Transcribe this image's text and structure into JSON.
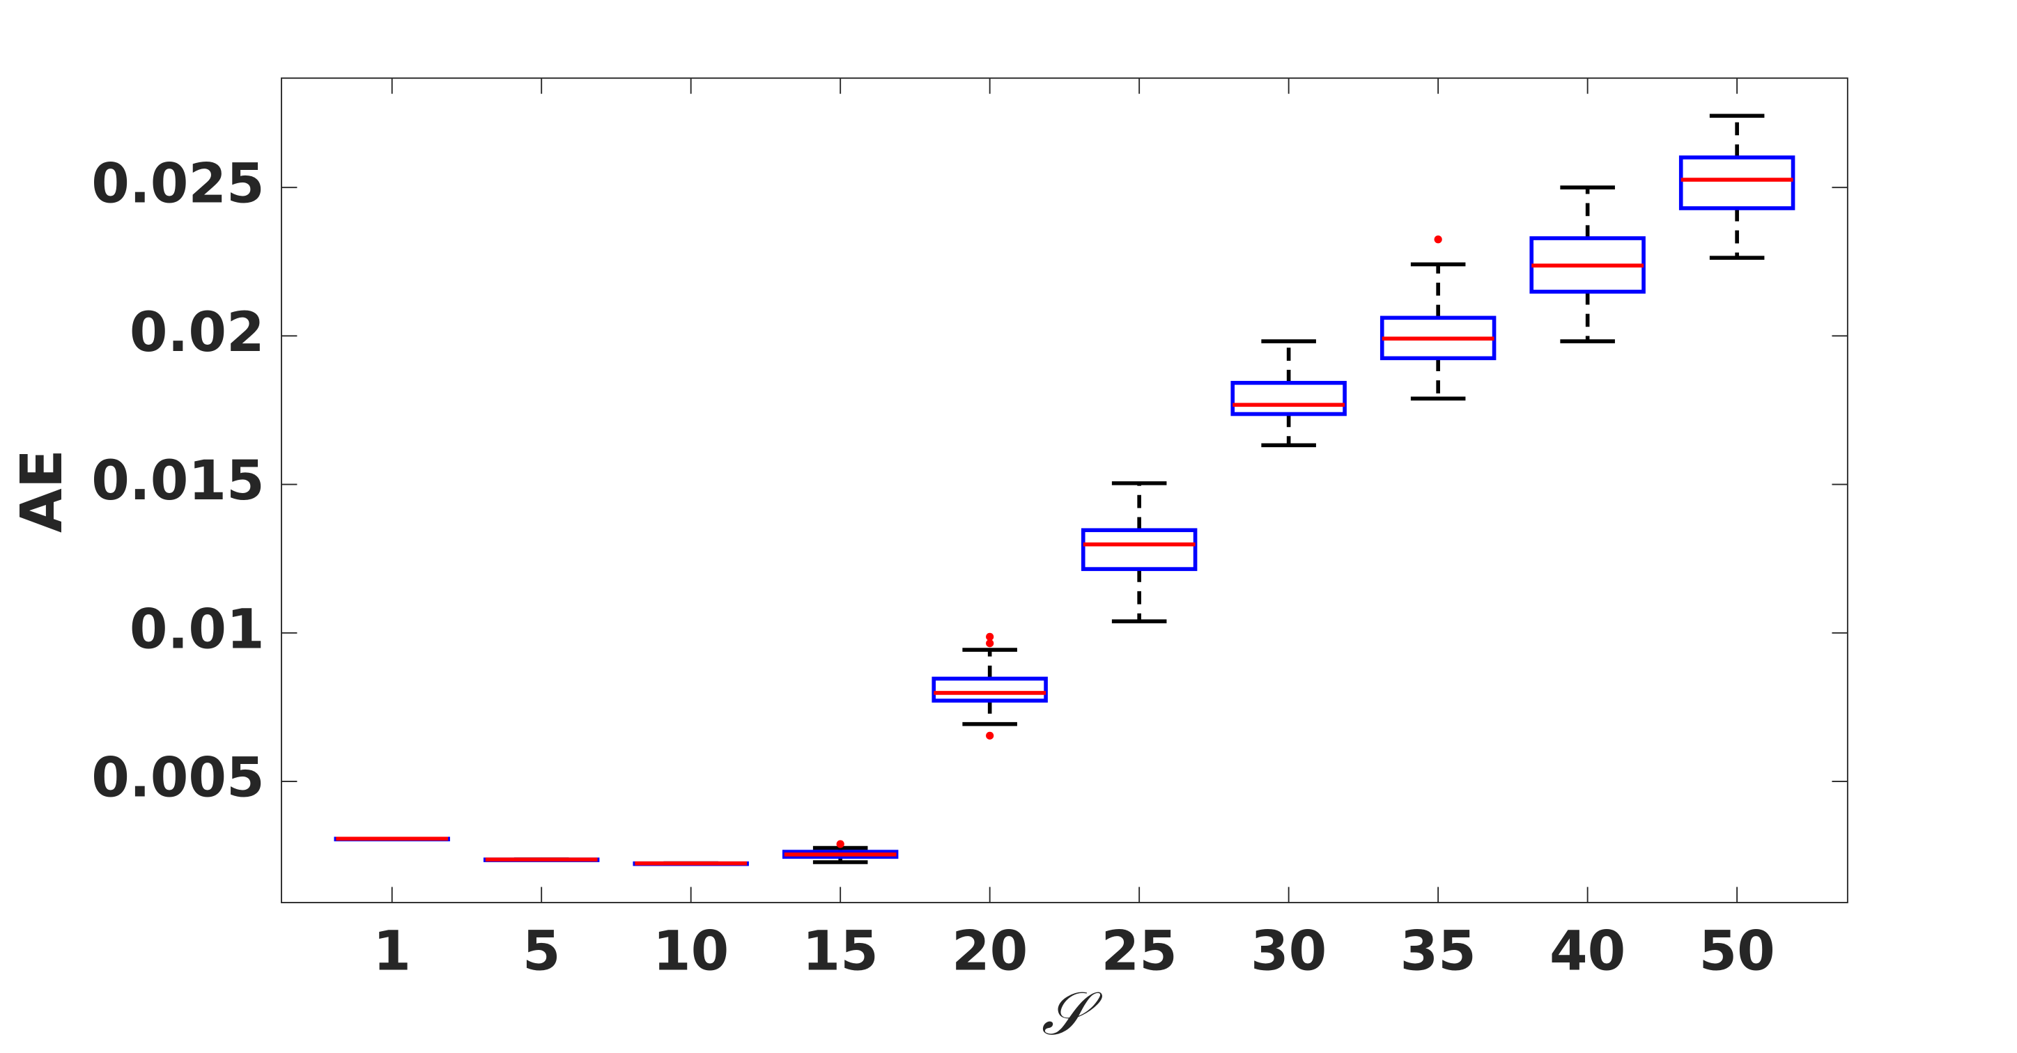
{
  "chart_data": {
    "type": "box",
    "x_label": "𝒮",
    "y_label": "AE",
    "categories": [
      "1",
      "5",
      "10",
      "15",
      "20",
      "25",
      "30",
      "35",
      "40",
      "50"
    ],
    "boxes": [
      {
        "min": 0.00307,
        "q1": 0.00307,
        "median": 0.00307,
        "q3": 0.00307,
        "max": 0.00307,
        "outliers": []
      },
      {
        "min": 0.00237,
        "q1": 0.00237,
        "median": 0.00237,
        "q3": 0.00237,
        "max": 0.00237,
        "outliers": []
      },
      {
        "min": 0.00224,
        "q1": 0.00224,
        "median": 0.00224,
        "q3": 0.00224,
        "max": 0.00224,
        "outliers": []
      },
      {
        "min": 0.00228,
        "q1": 0.00246,
        "median": 0.00254,
        "q3": 0.00263,
        "max": 0.00276,
        "outliers": [
          0.00289
        ]
      },
      {
        "min": 0.00693,
        "q1": 0.00772,
        "median": 0.00798,
        "q3": 0.00846,
        "max": 0.00943,
        "outliers": [
          0.00987,
          0.00965,
          0.00654
        ]
      },
      {
        "min": 0.01039,
        "q1": 0.01215,
        "median": 0.01298,
        "q3": 0.01346,
        "max": 0.01504,
        "outliers": []
      },
      {
        "min": 0.01632,
        "q1": 0.01737,
        "median": 0.01768,
        "q3": 0.01842,
        "max": 0.01982,
        "outliers": []
      },
      {
        "min": 0.01789,
        "q1": 0.01925,
        "median": 0.01991,
        "q3": 0.02061,
        "max": 0.02241,
        "outliers": [
          0.02325
        ]
      },
      {
        "min": 0.01982,
        "q1": 0.02149,
        "median": 0.02237,
        "q3": 0.02329,
        "max": 0.025,
        "outliers": []
      },
      {
        "min": 0.02263,
        "q1": 0.0243,
        "median": 0.02526,
        "q3": 0.02601,
        "max": 0.02741,
        "outliers": []
      }
    ],
    "box_color": "#0000ff",
    "median_color": "#ff0000",
    "whisker_color": "#000000",
    "outlier_color": "#ff0000",
    "ylim": [
      0.00092,
      0.02868
    ],
    "yticks": [
      0.005,
      0.01,
      0.015,
      0.02,
      0.025
    ]
  }
}
